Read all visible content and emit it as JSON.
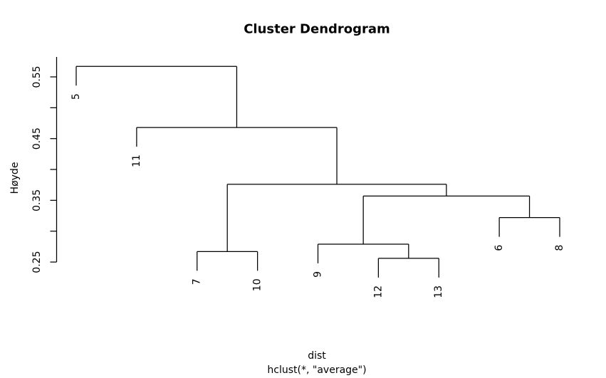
{
  "chart_data": {
    "type": "dendrogram",
    "title": "Cluster Dendrogram",
    "ylabel": "Høyde",
    "xlabel": "dist",
    "sub_xlabel": "hclust(*, \"average\")",
    "ylim": [
      0.25,
      0.55
    ],
    "y_ticks": [
      {
        "value": 0.25,
        "label": "0.25"
      },
      {
        "value": 0.3,
        "label": ""
      },
      {
        "value": 0.35,
        "label": "0.35"
      },
      {
        "value": 0.4,
        "label": ""
      },
      {
        "value": 0.45,
        "label": "0.45"
      },
      {
        "value": 0.5,
        "label": ""
      },
      {
        "value": 0.55,
        "label": "0.55"
      }
    ],
    "leaf_order": [
      "5",
      "11",
      "7",
      "10",
      "9",
      "12",
      "13",
      "6",
      "8"
    ],
    "merges": [
      {
        "id": "n_7_10",
        "left": {
          "leaf": "7"
        },
        "right": {
          "leaf": "10"
        },
        "height": 0.267
      },
      {
        "id": "n_12_13",
        "left": {
          "leaf": "12"
        },
        "right": {
          "leaf": "13"
        },
        "height": 0.256
      },
      {
        "id": "n_9_12_13",
        "left": {
          "leaf": "9"
        },
        "right": {
          "node": "n_12_13"
        },
        "height": 0.279
      },
      {
        "id": "n_6_8",
        "left": {
          "leaf": "6"
        },
        "right": {
          "leaf": "8"
        },
        "height": 0.322
      },
      {
        "id": "n_mid",
        "left": {
          "node": "n_9_12_13"
        },
        "right": {
          "node": "n_6_8"
        },
        "height": 0.357
      },
      {
        "id": "n_lower",
        "left": {
          "node": "n_7_10"
        },
        "right": {
          "node": "n_mid"
        },
        "height": 0.376
      },
      {
        "id": "n_11_group",
        "left": {
          "leaf": "11"
        },
        "right": {
          "node": "n_lower"
        },
        "height": 0.468
      },
      {
        "id": "root",
        "left": {
          "leaf": "5"
        },
        "right": {
          "node": "n_11_group"
        },
        "height": 0.567
      }
    ]
  },
  "colors": {
    "line": "#000000",
    "text": "#000000",
    "background": "#ffffff"
  }
}
